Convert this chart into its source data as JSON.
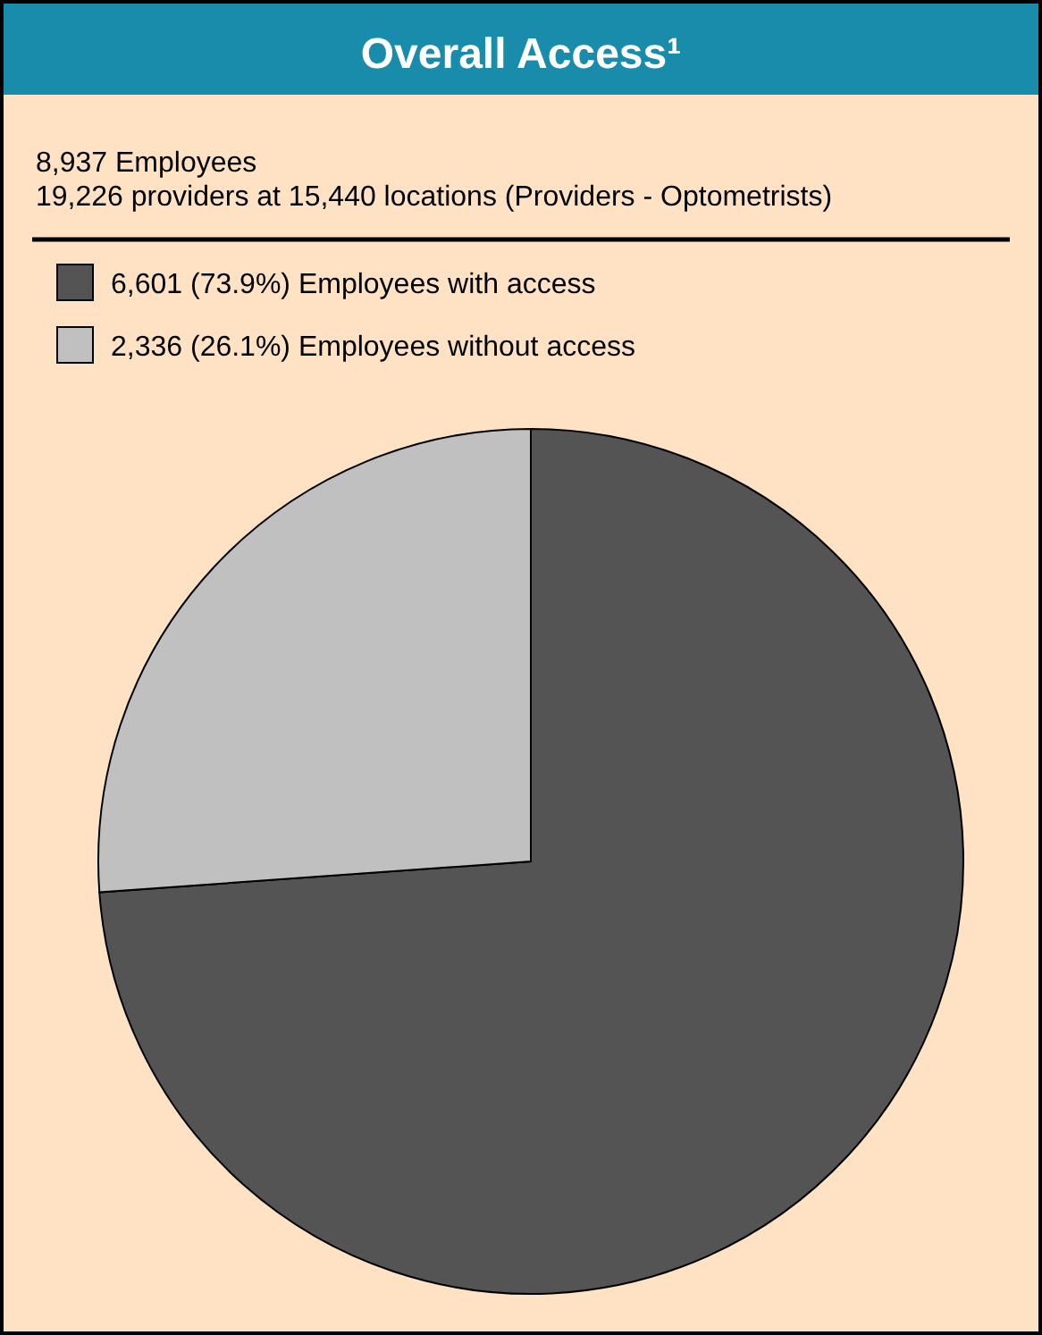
{
  "chart_data": {
    "type": "pie",
    "title": "Overall Access¹",
    "annotations": [
      "8,937 Employees",
      "19,226 providers at 15,440 locations (Providers - Optometrists)"
    ],
    "categories": [
      "6,601 (73.9%) Employees with access",
      "2,336 (26.1%) Employees without access"
    ],
    "values": [
      6601,
      2336
    ],
    "colors": [
      "#545454",
      "#c0c0c0"
    ],
    "legend": "top left"
  }
}
